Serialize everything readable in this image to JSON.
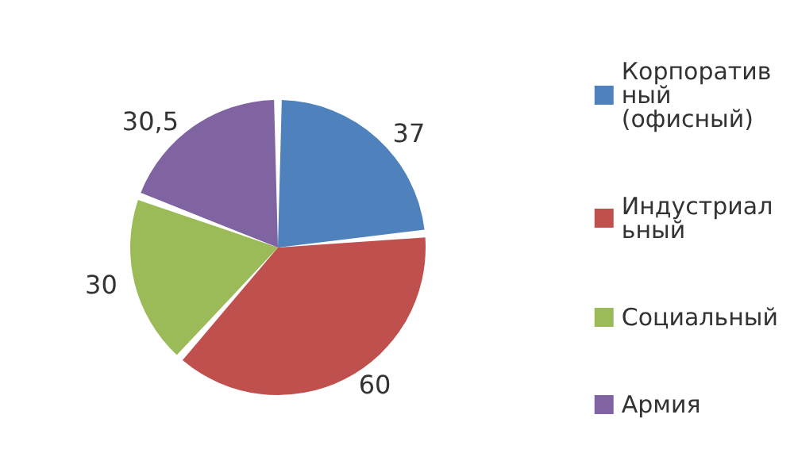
{
  "chart_data": {
    "type": "pie",
    "categories": [
      "Корпоративный (офисный)",
      "Индустриальный",
      "Социальный",
      "Армия"
    ],
    "values": [
      37,
      60,
      30,
      30.5
    ],
    "value_labels": [
      "37",
      "60",
      "30",
      "30,5"
    ],
    "colors": [
      "#4f81bd",
      "#c0504d",
      "#9bbb59",
      "#8064a2"
    ],
    "legend": "right"
  }
}
